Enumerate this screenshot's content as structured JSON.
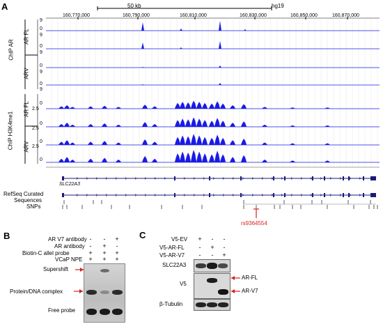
{
  "panels": {
    "a": "A",
    "b": "B",
    "c": "C"
  },
  "panel_a": {
    "scale_label": "50 kb",
    "genome": "hg19",
    "coordinates": [
      "160,770,000",
      "160,790,000",
      "160,810,000",
      "160,830,000",
      "160,850,000",
      "160,870,000"
    ],
    "group_labels": {
      "chip_ar": "ChIP AR",
      "chip_h3k4me1": "ChIP H3K4me1"
    },
    "sub_labels": {
      "ar_fl_1": "AR FL",
      "arv_1": "ARV",
      "ar_fl_2": "AR FL",
      "arv_2": "ARV"
    },
    "track_scales": {
      "ar_top": "9",
      "ar_bottom": "0",
      "h3_top": "2.5",
      "h3_bottom": "0"
    },
    "gene_name": "SLC22A3",
    "refseq_label_1": "RefSeq Curated",
    "refseq_label_2": "Sequences",
    "snps_label": "SNPs",
    "highlight_snp": "rs9364554"
  },
  "panel_b": {
    "row_labels": [
      "AR V7 antibody",
      "AR antibody",
      "Biotin-C allel probe",
      "VCaP NPE"
    ],
    "signs": [
      [
        "-",
        "-",
        "+"
      ],
      [
        "-",
        "+",
        "-"
      ],
      [
        "+",
        "+",
        "+"
      ],
      [
        "+",
        "+",
        "+"
      ]
    ],
    "band_labels": {
      "supershift": "Supershift",
      "complex": "Protein/DNA complex",
      "free": "Free probe"
    }
  },
  "panel_c": {
    "row_labels": [
      "V5-EV",
      "V5-AR-FL",
      "V5-AR-V7"
    ],
    "signs": [
      [
        "+",
        "-",
        "-"
      ],
      [
        "-",
        "+",
        "-"
      ],
      [
        "-",
        "-",
        "+"
      ]
    ],
    "blot_labels": {
      "slc22a3": "SLC22A3",
      "v5": "V5",
      "tubulin": "β-Tubulin"
    },
    "band_labels": {
      "ar_fl": "AR-FL",
      "ar_v7": "AR-V7"
    }
  },
  "colors": {
    "track_blue": "#1a1ae6",
    "accent_red": "#d42020",
    "dark_navy": "#1b1b7a"
  }
}
